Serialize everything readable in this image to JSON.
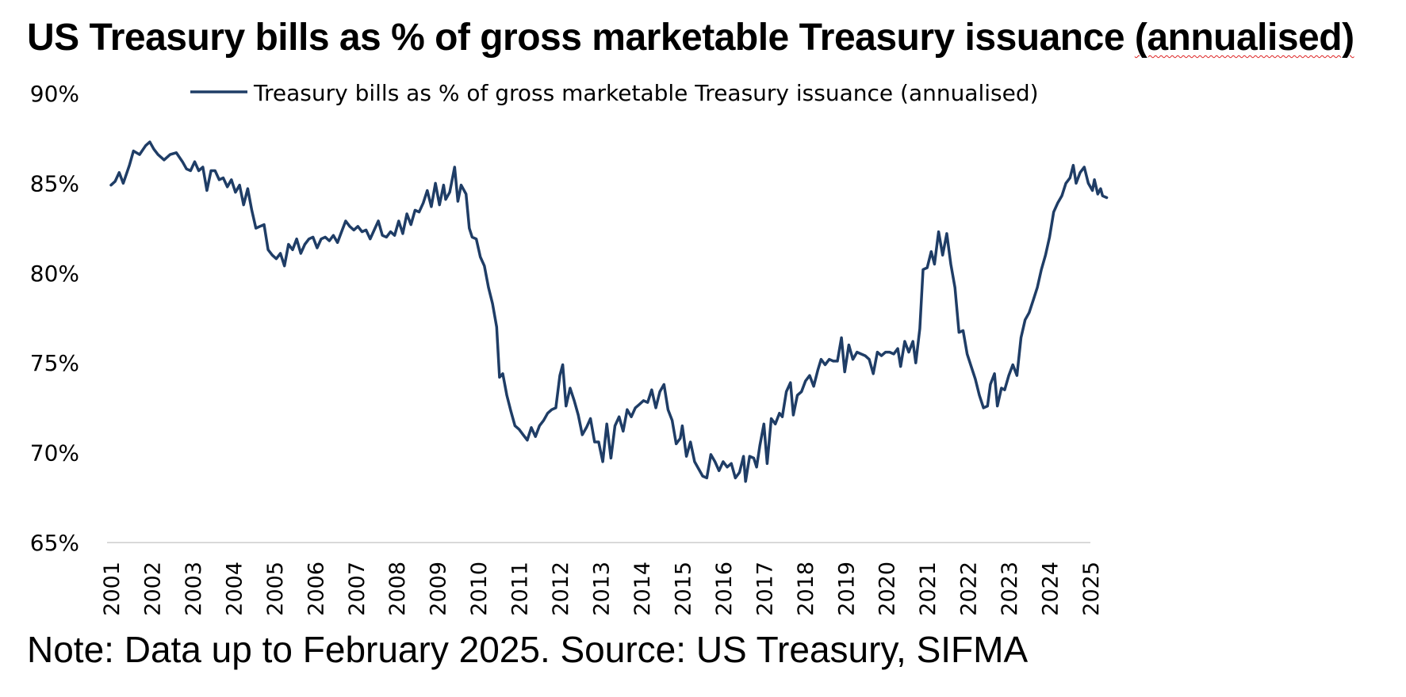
{
  "header": {
    "title_main": "US Treasury bills as % of gross marketable Treasury issuance ",
    "title_tail": "(annualised)"
  },
  "note": "Note: Data up to February 2025. Source: US Treasury, SIFMA",
  "colors": {
    "line": "#1f3d66",
    "axis": "#d9d9d9"
  },
  "chart_data": {
    "type": "line",
    "title": "US Treasury bills as % of gross marketable Treasury issuance (annualised)",
    "y_ticks": [
      "90%",
      "85%",
      "80%",
      "75%",
      "70%",
      "65%"
    ],
    "ylim": [
      65,
      90
    ],
    "x_ticks": [
      "2001",
      "2002",
      "2003",
      "2004",
      "2005",
      "2006",
      "2007",
      "2008",
      "2009",
      "2010",
      "2011",
      "2012",
      "2013",
      "2014",
      "2015",
      "2016",
      "2017",
      "2018",
      "2019",
      "2020",
      "2021",
      "2022",
      "2023",
      "2024",
      "2025"
    ],
    "xlim": [
      2001,
      2025
    ],
    "grid": false,
    "legend_position": "top",
    "series": [
      {
        "name": "Treasury bills as % of gross marketable Treasury issuance (annualised)",
        "points": [
          [
            2001.0,
            84.9
          ],
          [
            2001.1,
            85.1
          ],
          [
            2001.2,
            85.6
          ],
          [
            2001.3,
            85.0
          ],
          [
            2001.45,
            86.0
          ],
          [
            2001.55,
            86.8
          ],
          [
            2001.7,
            86.6
          ],
          [
            2001.85,
            87.1
          ],
          [
            2001.95,
            87.3
          ],
          [
            2002.05,
            86.9
          ],
          [
            2002.15,
            86.6
          ],
          [
            2002.3,
            86.3
          ],
          [
            2002.45,
            86.6
          ],
          [
            2002.6,
            86.7
          ],
          [
            2002.75,
            86.2
          ],
          [
            2002.85,
            85.8
          ],
          [
            2002.95,
            85.7
          ],
          [
            2003.05,
            86.2
          ],
          [
            2003.15,
            85.7
          ],
          [
            2003.25,
            85.9
          ],
          [
            2003.35,
            84.6
          ],
          [
            2003.45,
            85.7
          ],
          [
            2003.55,
            85.7
          ],
          [
            2003.65,
            85.2
          ],
          [
            2003.75,
            85.3
          ],
          [
            2003.85,
            84.8
          ],
          [
            2003.95,
            85.2
          ],
          [
            2004.05,
            84.5
          ],
          [
            2004.15,
            84.9
          ],
          [
            2004.25,
            83.8
          ],
          [
            2004.35,
            84.7
          ],
          [
            2004.45,
            83.5
          ],
          [
            2004.55,
            82.5
          ],
          [
            2004.65,
            82.6
          ],
          [
            2004.75,
            82.7
          ],
          [
            2004.85,
            81.3
          ],
          [
            2004.95,
            81.0
          ],
          [
            2005.05,
            80.8
          ],
          [
            2005.15,
            81.1
          ],
          [
            2005.25,
            80.4
          ],
          [
            2005.35,
            81.6
          ],
          [
            2005.45,
            81.3
          ],
          [
            2005.55,
            81.9
          ],
          [
            2005.65,
            81.1
          ],
          [
            2005.75,
            81.6
          ],
          [
            2005.85,
            81.9
          ],
          [
            2005.95,
            82.0
          ],
          [
            2006.05,
            81.4
          ],
          [
            2006.15,
            81.9
          ],
          [
            2006.25,
            82.0
          ],
          [
            2006.35,
            81.8
          ],
          [
            2006.45,
            82.1
          ],
          [
            2006.55,
            81.7
          ],
          [
            2006.65,
            82.3
          ],
          [
            2006.75,
            82.9
          ],
          [
            2006.85,
            82.6
          ],
          [
            2006.95,
            82.4
          ],
          [
            2007.05,
            82.6
          ],
          [
            2007.15,
            82.3
          ],
          [
            2007.25,
            82.4
          ],
          [
            2007.35,
            81.9
          ],
          [
            2007.45,
            82.4
          ],
          [
            2007.55,
            82.9
          ],
          [
            2007.65,
            82.1
          ],
          [
            2007.75,
            82.0
          ],
          [
            2007.85,
            82.3
          ],
          [
            2007.95,
            82.1
          ],
          [
            2008.05,
            82.9
          ],
          [
            2008.15,
            82.2
          ],
          [
            2008.25,
            83.3
          ],
          [
            2008.35,
            82.7
          ],
          [
            2008.45,
            83.5
          ],
          [
            2008.55,
            83.4
          ],
          [
            2008.65,
            83.9
          ],
          [
            2008.75,
            84.6
          ],
          [
            2008.85,
            83.7
          ],
          [
            2008.95,
            85.0
          ],
          [
            2009.05,
            83.8
          ],
          [
            2009.15,
            84.9
          ],
          [
            2009.2,
            84.1
          ],
          [
            2009.3,
            84.5
          ],
          [
            2009.42,
            85.9
          ],
          [
            2009.5,
            84.0
          ],
          [
            2009.58,
            84.9
          ],
          [
            2009.7,
            84.4
          ],
          [
            2009.78,
            82.5
          ],
          [
            2009.85,
            82.0
          ],
          [
            2009.95,
            81.9
          ],
          [
            2010.05,
            80.9
          ],
          [
            2010.15,
            80.4
          ],
          [
            2010.25,
            79.2
          ],
          [
            2010.35,
            78.3
          ],
          [
            2010.45,
            77.0
          ],
          [
            2010.52,
            74.2
          ],
          [
            2010.6,
            74.4
          ],
          [
            2010.7,
            73.2
          ],
          [
            2010.8,
            72.3
          ],
          [
            2010.9,
            71.5
          ],
          [
            2011.0,
            71.3
          ],
          [
            2011.1,
            71.0
          ],
          [
            2011.2,
            70.7
          ],
          [
            2011.3,
            71.4
          ],
          [
            2011.4,
            70.9
          ],
          [
            2011.5,
            71.5
          ],
          [
            2011.6,
            71.8
          ],
          [
            2011.7,
            72.2
          ],
          [
            2011.8,
            72.4
          ],
          [
            2011.9,
            72.5
          ],
          [
            2012.0,
            74.3
          ],
          [
            2012.07,
            74.9
          ],
          [
            2012.15,
            72.6
          ],
          [
            2012.25,
            73.6
          ],
          [
            2012.35,
            72.9
          ],
          [
            2012.45,
            72.1
          ],
          [
            2012.55,
            71.0
          ],
          [
            2012.65,
            71.4
          ],
          [
            2012.75,
            71.9
          ],
          [
            2012.85,
            70.6
          ],
          [
            2012.95,
            70.6
          ],
          [
            2013.05,
            69.5
          ],
          [
            2013.15,
            71.6
          ],
          [
            2013.25,
            69.7
          ],
          [
            2013.35,
            71.5
          ],
          [
            2013.45,
            72.0
          ],
          [
            2013.55,
            71.2
          ],
          [
            2013.65,
            72.4
          ],
          [
            2013.75,
            72.0
          ],
          [
            2013.85,
            72.5
          ],
          [
            2013.95,
            72.7
          ],
          [
            2014.05,
            72.9
          ],
          [
            2014.15,
            72.8
          ],
          [
            2014.25,
            73.5
          ],
          [
            2014.35,
            72.5
          ],
          [
            2014.45,
            73.4
          ],
          [
            2014.55,
            73.8
          ],
          [
            2014.65,
            72.4
          ],
          [
            2014.75,
            71.8
          ],
          [
            2014.85,
            70.5
          ],
          [
            2014.95,
            70.8
          ],
          [
            2015.0,
            71.5
          ],
          [
            2015.1,
            69.8
          ],
          [
            2015.2,
            70.6
          ],
          [
            2015.3,
            69.5
          ],
          [
            2015.4,
            69.1
          ],
          [
            2015.5,
            68.7
          ],
          [
            2015.6,
            68.6
          ],
          [
            2015.7,
            69.9
          ],
          [
            2015.8,
            69.5
          ],
          [
            2015.9,
            69.0
          ],
          [
            2016.0,
            69.5
          ],
          [
            2016.1,
            69.2
          ],
          [
            2016.2,
            69.4
          ],
          [
            2016.3,
            68.6
          ],
          [
            2016.4,
            68.9
          ],
          [
            2016.5,
            69.8
          ],
          [
            2016.55,
            68.4
          ],
          [
            2016.65,
            69.8
          ],
          [
            2016.75,
            69.7
          ],
          [
            2016.82,
            69.2
          ],
          [
            2016.9,
            70.4
          ],
          [
            2017.0,
            71.6
          ],
          [
            2017.08,
            69.4
          ],
          [
            2017.18,
            71.9
          ],
          [
            2017.28,
            71.6
          ],
          [
            2017.38,
            72.2
          ],
          [
            2017.45,
            72.0
          ],
          [
            2017.55,
            73.4
          ],
          [
            2017.65,
            73.9
          ],
          [
            2017.72,
            72.1
          ],
          [
            2017.82,
            73.2
          ],
          [
            2017.92,
            73.4
          ],
          [
            2018.02,
            74.0
          ],
          [
            2018.12,
            74.3
          ],
          [
            2018.22,
            73.7
          ],
          [
            2018.32,
            74.6
          ],
          [
            2018.4,
            75.2
          ],
          [
            2018.5,
            74.9
          ],
          [
            2018.6,
            75.2
          ],
          [
            2018.7,
            75.1
          ],
          [
            2018.8,
            75.1
          ],
          [
            2018.9,
            76.4
          ],
          [
            2018.98,
            74.5
          ],
          [
            2019.08,
            76.0
          ],
          [
            2019.18,
            75.2
          ],
          [
            2019.28,
            75.6
          ],
          [
            2019.38,
            75.5
          ],
          [
            2019.48,
            75.4
          ],
          [
            2019.58,
            75.2
          ],
          [
            2019.68,
            74.4
          ],
          [
            2019.78,
            75.6
          ],
          [
            2019.88,
            75.4
          ],
          [
            2019.98,
            75.6
          ],
          [
            2020.08,
            75.6
          ],
          [
            2020.18,
            75.5
          ],
          [
            2020.28,
            75.8
          ],
          [
            2020.35,
            74.8
          ],
          [
            2020.45,
            76.2
          ],
          [
            2020.55,
            75.6
          ],
          [
            2020.65,
            76.2
          ],
          [
            2020.72,
            75.0
          ],
          [
            2020.82,
            76.9
          ],
          [
            2020.9,
            80.2
          ],
          [
            2021.0,
            80.3
          ],
          [
            2021.1,
            81.2
          ],
          [
            2021.18,
            80.5
          ],
          [
            2021.28,
            82.3
          ],
          [
            2021.38,
            81.0
          ],
          [
            2021.48,
            82.2
          ],
          [
            2021.58,
            80.5
          ],
          [
            2021.68,
            79.2
          ],
          [
            2021.78,
            76.7
          ],
          [
            2021.88,
            76.8
          ],
          [
            2021.98,
            75.5
          ],
          [
            2022.08,
            74.8
          ],
          [
            2022.18,
            74.1
          ],
          [
            2022.28,
            73.2
          ],
          [
            2022.38,
            72.5
          ],
          [
            2022.48,
            72.6
          ],
          [
            2022.55,
            73.8
          ],
          [
            2022.65,
            74.4
          ],
          [
            2022.72,
            72.6
          ],
          [
            2022.82,
            73.6
          ],
          [
            2022.9,
            73.5
          ],
          [
            2023.0,
            74.3
          ],
          [
            2023.1,
            74.9
          ],
          [
            2023.2,
            74.3
          ],
          [
            2023.3,
            76.4
          ],
          [
            2023.4,
            77.4
          ],
          [
            2023.5,
            77.8
          ],
          [
            2023.6,
            78.5
          ],
          [
            2023.7,
            79.2
          ],
          [
            2023.8,
            80.2
          ],
          [
            2023.9,
            81.0
          ],
          [
            2024.0,
            82.0
          ],
          [
            2024.1,
            83.4
          ],
          [
            2024.2,
            83.9
          ],
          [
            2024.3,
            84.3
          ],
          [
            2024.4,
            85.0
          ],
          [
            2024.5,
            85.3
          ],
          [
            2024.58,
            86.0
          ],
          [
            2024.65,
            85.0
          ],
          [
            2024.75,
            85.6
          ],
          [
            2024.85,
            85.9
          ],
          [
            2024.95,
            85.0
          ],
          [
            2025.05,
            84.6
          ],
          [
            2025.1,
            85.2
          ],
          [
            2025.18,
            84.4
          ],
          [
            2025.25,
            84.7
          ],
          [
            2025.3,
            84.3
          ],
          [
            2025.4,
            84.2
          ]
        ]
      }
    ]
  }
}
